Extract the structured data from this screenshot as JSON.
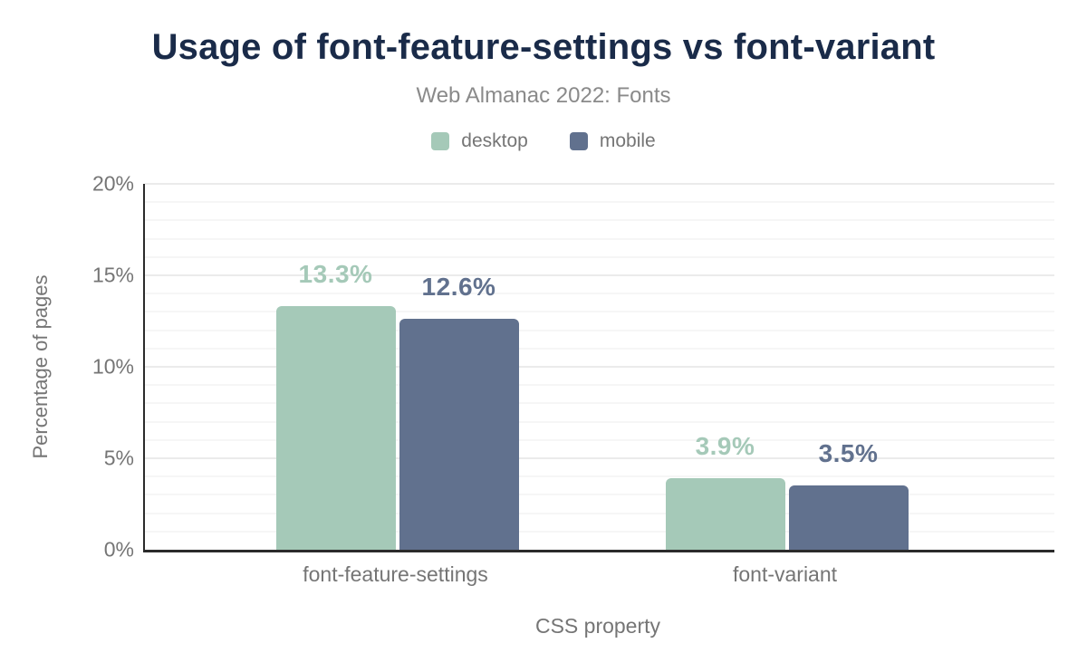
{
  "chart_data": {
    "type": "bar",
    "title": "Usage of font-feature-settings vs font-variant",
    "subtitle": "Web Almanac 2022: Fonts",
    "categories": [
      "font-feature-settings",
      "font-variant"
    ],
    "series": [
      {
        "name": "desktop",
        "color": "#a5c9b8",
        "values": [
          13.3,
          3.9
        ],
        "value_labels": [
          "13.3%",
          "3.9%"
        ]
      },
      {
        "name": "mobile",
        "color": "#61718e",
        "values": [
          12.6,
          3.5
        ],
        "value_labels": [
          "12.6%",
          "3.5%"
        ]
      }
    ],
    "xlabel": "CSS property",
    "ylabel": "Percentage of pages",
    "ylim": [
      0,
      20
    ],
    "yticks": [
      0,
      5,
      10,
      15,
      20
    ],
    "ytick_labels": [
      "0%",
      "5%",
      "10%",
      "15%",
      "20%"
    ],
    "grid": {
      "minor_step": 1,
      "major_step": 5,
      "visible": true
    },
    "legend_position": "top"
  },
  "colors": {
    "background": "#ffffff",
    "title": "#1a2b49",
    "subtitle": "#8a8a8a",
    "axis_text": "#757575",
    "axis_line": "#2b2b2b",
    "grid_minor": "#f6f6f6",
    "grid_major": "#ebebeb",
    "desktop": "#a5c9b8",
    "mobile": "#61718e"
  }
}
